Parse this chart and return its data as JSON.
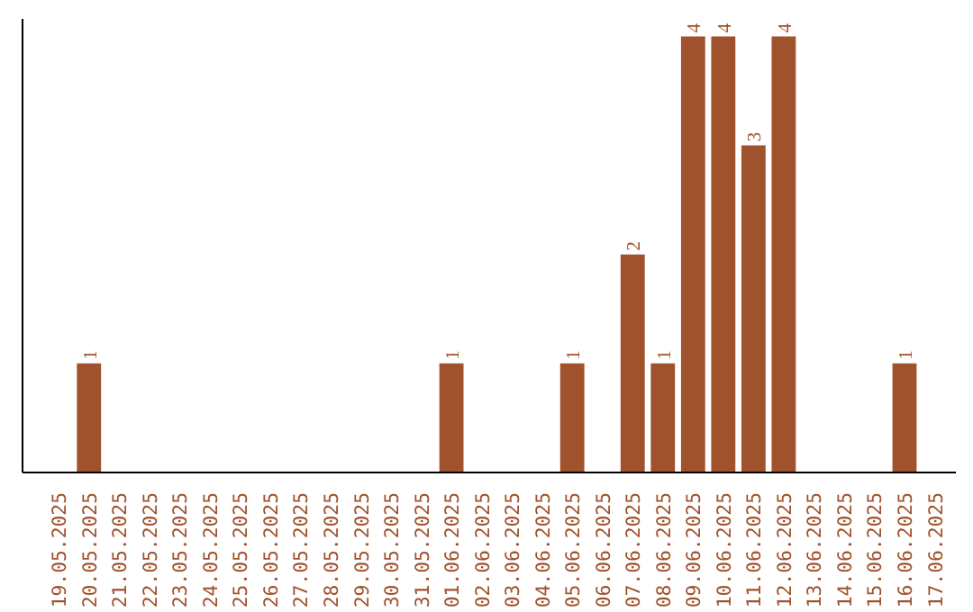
{
  "chart_data": {
    "type": "bar",
    "categories": [
      "19.05.2025",
      "20.05.2025",
      "21.05.2025",
      "22.05.2025",
      "23.05.2025",
      "24.05.2025",
      "25.05.2025",
      "26.05.2025",
      "27.05.2025",
      "28.05.2025",
      "29.05.2025",
      "30.05.2025",
      "31.05.2025",
      "01.06.2025",
      "02.06.2025",
      "03.06.2025",
      "04.06.2025",
      "05.06.2025",
      "06.06.2025",
      "07.06.2025",
      "08.06.2025",
      "09.06.2025",
      "10.06.2025",
      "11.06.2025",
      "12.06.2025",
      "13.06.2025",
      "14.06.2025",
      "15.06.2025",
      "16.06.2025",
      "17.06.2025"
    ],
    "values": [
      0,
      1,
      0,
      0,
      0,
      0,
      0,
      0,
      0,
      0,
      0,
      0,
      0,
      1,
      0,
      0,
      0,
      1,
      0,
      2,
      1,
      4,
      4,
      3,
      4,
      0,
      0,
      0,
      1,
      0
    ],
    "value_labels": [
      null,
      "1",
      null,
      null,
      null,
      null,
      null,
      null,
      null,
      null,
      null,
      null,
      null,
      "1",
      null,
      null,
      null,
      "1",
      null,
      "2",
      "1",
      "4",
      "4",
      "3",
      "4",
      null,
      null,
      null,
      "1",
      null
    ],
    "color": "#a0522d",
    "grid": false,
    "tick_labels": "x"
  }
}
